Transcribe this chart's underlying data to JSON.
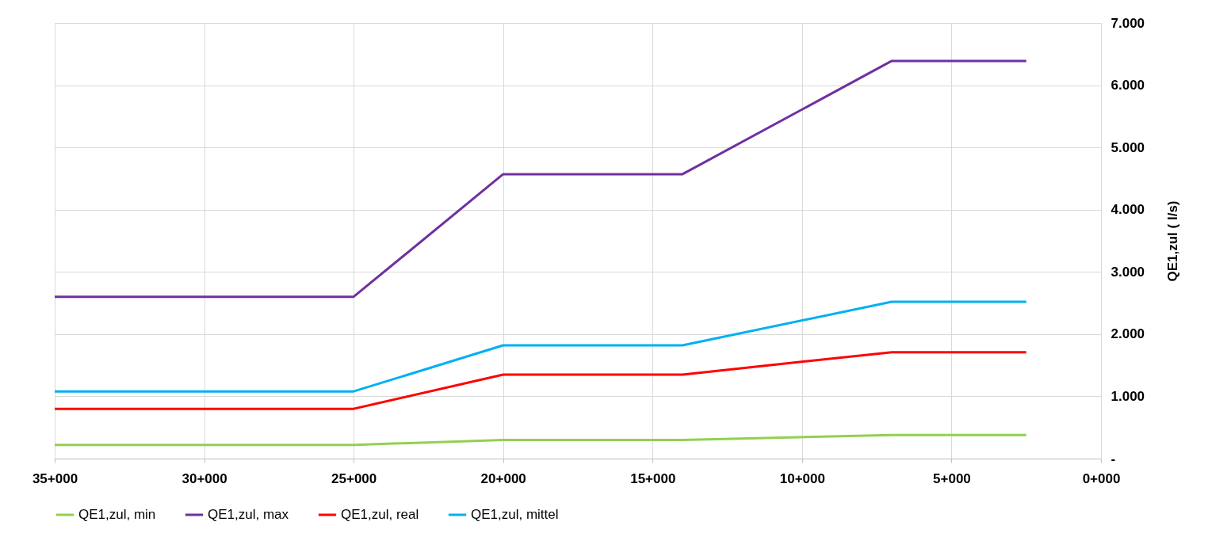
{
  "chart_data": {
    "type": "line",
    "ylabel": "QE1,zul ( l/s)",
    "categories": [
      "35+000",
      null,
      null,
      null,
      null,
      null,
      null,
      null,
      null,
      null,
      "30+000",
      null,
      null,
      null,
      null,
      null,
      null,
      null,
      null,
      null,
      "25+000",
      null,
      null,
      null,
      null,
      null,
      null,
      null,
      null,
      null,
      "20+000",
      null,
      null,
      null,
      null,
      null,
      null,
      null,
      null,
      null,
      "15+000",
      null,
      null,
      null,
      null,
      null,
      null,
      null,
      null,
      null,
      "10+000",
      null,
      null,
      null,
      null,
      null,
      null,
      null,
      null,
      null,
      "5+000",
      null,
      null,
      null,
      null,
      null,
      null,
      null,
      null,
      null,
      "0+000"
    ],
    "series": [
      {
        "name": "QE1,zul, min",
        "color": "#92d050",
        "values": [
          220,
          null,
          null,
          null,
          null,
          null,
          null,
          null,
          null,
          null,
          null,
          null,
          null,
          null,
          null,
          null,
          null,
          null,
          null,
          null,
          220,
          null,
          null,
          null,
          null,
          null,
          null,
          null,
          null,
          null,
          300,
          null,
          null,
          null,
          null,
          null,
          null,
          null,
          null,
          null,
          null,
          null,
          300,
          null,
          null,
          null,
          null,
          null,
          null,
          null,
          null,
          null,
          null,
          null,
          null,
          null,
          380,
          null,
          null,
          null,
          null,
          null,
          null,
          null,
          null,
          380,
          null,
          null,
          null,
          null,
          null
        ]
      },
      {
        "name": "QE1,zul, max",
        "color": "#7030a0",
        "values": [
          2600,
          null,
          null,
          null,
          null,
          null,
          null,
          null,
          null,
          null,
          null,
          null,
          null,
          null,
          null,
          null,
          null,
          null,
          null,
          null,
          2600,
          null,
          null,
          null,
          null,
          null,
          null,
          null,
          null,
          null,
          4570,
          null,
          null,
          null,
          null,
          null,
          null,
          null,
          null,
          null,
          null,
          null,
          4570,
          null,
          null,
          null,
          null,
          null,
          null,
          null,
          null,
          null,
          null,
          null,
          null,
          null,
          6390,
          null,
          null,
          null,
          null,
          null,
          null,
          null,
          null,
          6390,
          null,
          null,
          null,
          null,
          null
        ]
      },
      {
        "name": "QE1,zul, real",
        "color": "#ff0000",
        "values": [
          800,
          null,
          null,
          null,
          null,
          null,
          null,
          null,
          null,
          null,
          null,
          null,
          null,
          null,
          null,
          null,
          null,
          null,
          null,
          null,
          800,
          null,
          null,
          null,
          null,
          null,
          null,
          null,
          null,
          null,
          1350,
          null,
          null,
          null,
          null,
          null,
          null,
          null,
          null,
          null,
          null,
          null,
          1350,
          null,
          null,
          null,
          null,
          null,
          null,
          null,
          null,
          null,
          null,
          null,
          null,
          null,
          1710,
          null,
          null,
          null,
          null,
          null,
          null,
          null,
          null,
          1710,
          null,
          null,
          null,
          null,
          null
        ]
      },
      {
        "name": "QE1,zul, mittel",
        "color": "#00b0f0",
        "values": [
          1080,
          null,
          null,
          null,
          null,
          null,
          null,
          null,
          null,
          null,
          null,
          null,
          null,
          null,
          null,
          null,
          null,
          null,
          null,
          null,
          1080,
          null,
          null,
          null,
          null,
          null,
          null,
          null,
          null,
          null,
          1820,
          null,
          null,
          null,
          null,
          null,
          null,
          null,
          null,
          null,
          null,
          null,
          1820,
          null,
          null,
          null,
          null,
          null,
          null,
          null,
          null,
          null,
          null,
          null,
          null,
          null,
          2520,
          null,
          null,
          null,
          null,
          null,
          null,
          null,
          null,
          2520,
          null,
          null,
          null,
          null,
          null
        ]
      }
    ],
    "ylim": [
      0,
      7000
    ],
    "yticks": [
      {
        "value": 0,
        "label": "-"
      },
      {
        "value": 1000,
        "label": "1.000"
      },
      {
        "value": 2000,
        "label": "2.000"
      },
      {
        "value": 3000,
        "label": "3.000"
      },
      {
        "value": 4000,
        "label": "4.000"
      },
      {
        "value": 5000,
        "label": "5.000"
      },
      {
        "value": 6000,
        "label": "6.000"
      },
      {
        "value": 7000,
        "label": "7.000"
      }
    ],
    "grid": true,
    "legend": "bottom",
    "marker": "none",
    "line_style": "solid"
  }
}
